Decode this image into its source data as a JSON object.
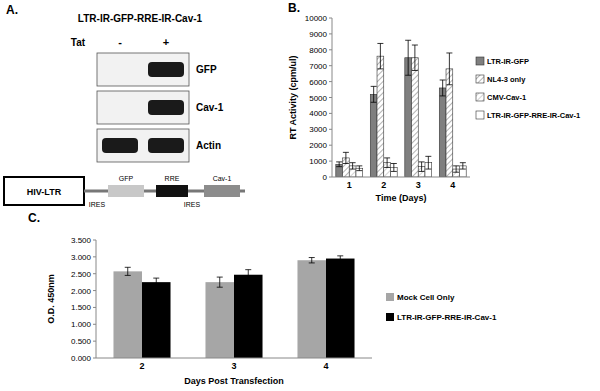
{
  "panels": {
    "a": "A.",
    "b": "B.",
    "c": "C."
  },
  "panel_a": {
    "title": "LTR-IR-GFP-RRE-IR-Cav-1",
    "treatment": "Tat",
    "lanes": [
      "-",
      "+"
    ],
    "blots": [
      {
        "label": "GFP",
        "bands": [
          false,
          true
        ]
      },
      {
        "label": "Cav-1",
        "bands": [
          false,
          true
        ]
      },
      {
        "label": "Actin",
        "bands": [
          true,
          true
        ]
      }
    ],
    "construct": {
      "promoter": "HIV-LTR",
      "sites": [
        "IRES",
        "IRES"
      ],
      "genes": [
        "GFP",
        "RRE",
        "Cav-1"
      ],
      "colors": [
        "#c8c8c8",
        "#111111",
        "#8c8c8c"
      ]
    }
  },
  "chart_data": [
    {
      "type": "bar",
      "x_label": "Time (Days)",
      "y_label": "RT Activity (cpm/ul)",
      "categories": [
        "1",
        "2",
        "3",
        "4"
      ],
      "series": [
        {
          "name": "LTR-IR-GFP",
          "color": "#7f7f7f",
          "values": [
            800,
            5200,
            7500,
            5600
          ],
          "errors": [
            150,
            500,
            1100,
            500
          ]
        },
        {
          "name": "NL4-3 only",
          "color": "#7f7f7f",
          "values": [
            1200,
            7600,
            7500,
            6800
          ],
          "errors": [
            350,
            800,
            800,
            1000
          ]
        },
        {
          "name": "CMV-Cav-1",
          "color": "#a6a6a6",
          "values": [
            700,
            900,
            650,
            500
          ],
          "errors": [
            200,
            300,
            300,
            200
          ]
        },
        {
          "name": "LTR-IR-GFP-RRE-IR-Cav-1",
          "color": "#ffffff",
          "values": [
            550,
            600,
            900,
            700
          ],
          "errors": [
            150,
            250,
            400,
            200
          ]
        }
      ],
      "ylim": [
        0,
        10000
      ],
      "yticks": [
        0,
        1000,
        2000,
        3000,
        4000,
        5000,
        6000,
        7000,
        8000,
        9000,
        10000
      ],
      "grid": false,
      "legend": "right"
    },
    {
      "type": "bar",
      "x_label": "Days Post Transfection",
      "y_label": "O.D. 450nm",
      "categories": [
        "2",
        "3",
        "4"
      ],
      "series": [
        {
          "name": "Mock Cell Only",
          "color": "#a6a6a6",
          "values": [
            2.57,
            2.25,
            2.9
          ],
          "errors": [
            0.12,
            0.15,
            0.08
          ]
        },
        {
          "name": "LTR-IR-GFP-RRE-IR-Cav-1",
          "color": "#000000",
          "values": [
            2.25,
            2.47,
            2.95
          ],
          "errors": [
            0.12,
            0.15,
            0.08
          ]
        }
      ],
      "ylim": [
        0,
        3.5
      ],
      "yticks": [
        {
          "value": 0,
          "label": "0.000"
        },
        {
          "value": 0.5,
          "label": "0.500"
        },
        {
          "value": 1,
          "label": "1.000"
        },
        {
          "value": 1.5,
          "label": "1.500"
        },
        {
          "value": 2,
          "label": "2.000"
        },
        {
          "value": 2.5,
          "label": "2.500"
        },
        {
          "value": 3,
          "label": "3.000"
        },
        {
          "value": 3.5,
          "label": "3.500"
        }
      ],
      "grid": false,
      "legend": "right"
    }
  ]
}
